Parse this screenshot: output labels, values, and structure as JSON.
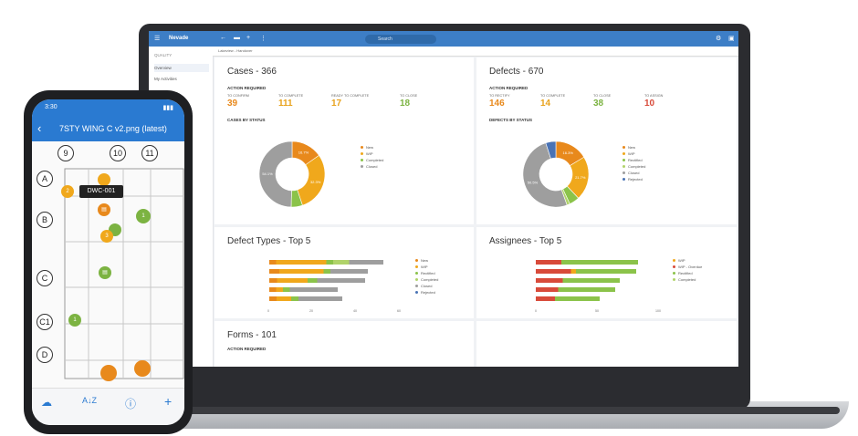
{
  "laptop": {
    "app": {
      "brand": "Nevade",
      "search_placeholder": "Search",
      "sidebar_section": "QUALITY",
      "sidebar_items": [
        "Overview",
        "My Activities"
      ],
      "tab_label": "Lakeview - Handover"
    },
    "cases": {
      "title": "Cases - 366",
      "action_required": "ACTION REQUIRED",
      "kpis": [
        {
          "label": "TO CONFIRM",
          "value": "39",
          "color": "#e8891c"
        },
        {
          "label": "TO COMPLETE",
          "value": "111",
          "color": "#e8a21c"
        },
        {
          "label": "READY TO COMPLETE",
          "value": "17",
          "color": "#e8a21c"
        },
        {
          "label": "TO CLOSE",
          "value": "18",
          "color": "#7cb342"
        }
      ],
      "by_status": "CASES BY STATUS",
      "legend": [
        "New",
        "WIP",
        "Completed",
        "Closed"
      ]
    },
    "defects": {
      "title": "Defects - 670",
      "action_required": "ACTION REQUIRED",
      "kpis": [
        {
          "label": "TO RECTIFY",
          "value": "146",
          "color": "#e8891c"
        },
        {
          "label": "TO COMPLETE",
          "value": "14",
          "color": "#e8a21c"
        },
        {
          "label": "TO CLOSE",
          "value": "38",
          "color": "#7cb342"
        },
        {
          "label": "TO ASSIGN",
          "value": "10",
          "color": "#d84a3a"
        }
      ],
      "by_status": "DEFECTS BY STATUS",
      "legend": [
        "New",
        "WIP",
        "Rectified",
        "Completed",
        "Closed",
        "Rejected"
      ]
    },
    "defect_types": {
      "title": "Defect Types - Top 5",
      "legend": [
        "New",
        "WIP",
        "Rectified",
        "Completed",
        "Closed",
        "Rejected"
      ],
      "axis": [
        "0",
        "20",
        "40",
        "60"
      ]
    },
    "assignees": {
      "title": "Assignees - Top 5",
      "legend": [
        "WIP",
        "WIP - Overdue",
        "Rectified",
        "Completed"
      ],
      "axis": [
        "0",
        "50",
        "100"
      ]
    },
    "forms": {
      "title": "Forms - 101",
      "action_required": "ACTION REQUIRED"
    }
  },
  "phone": {
    "time": "3:30",
    "title": "7STY WING C v2.png (latest)",
    "callout": "DWC-001",
    "grid_cols": [
      "9",
      "10",
      "11"
    ],
    "grid_rows": [
      "A",
      "B",
      "C",
      "C1",
      "D"
    ],
    "markers": [
      "2",
      "1",
      "3",
      "1",
      "1"
    ]
  },
  "chart_data": [
    {
      "type": "pie",
      "title": "CASES BY STATUS",
      "series": [
        {
          "values": [
            16.7,
            32.3,
            6.1,
            54.1
          ]
        }
      ],
      "categories": [
        "New",
        "WIP",
        "Completed",
        "Closed"
      ],
      "colors": [
        "#e8891c",
        "#f0a81c",
        "#8bc34a",
        "#9e9e9e"
      ]
    },
    {
      "type": "pie",
      "title": "DEFECTS BY STATUS",
      "series": [
        {
          "values": [
            16.3,
            21.7,
            5.0,
            1.5,
            50.5,
            5.0
          ]
        }
      ],
      "categories": [
        "New",
        "WIP",
        "Rectified",
        "Completed",
        "Closed",
        "Rejected"
      ],
      "colors": [
        "#e8891c",
        "#f0a81c",
        "#8bc34a",
        "#b0d36a",
        "#9e9e9e",
        "#4a73b5"
      ]
    }
  ]
}
